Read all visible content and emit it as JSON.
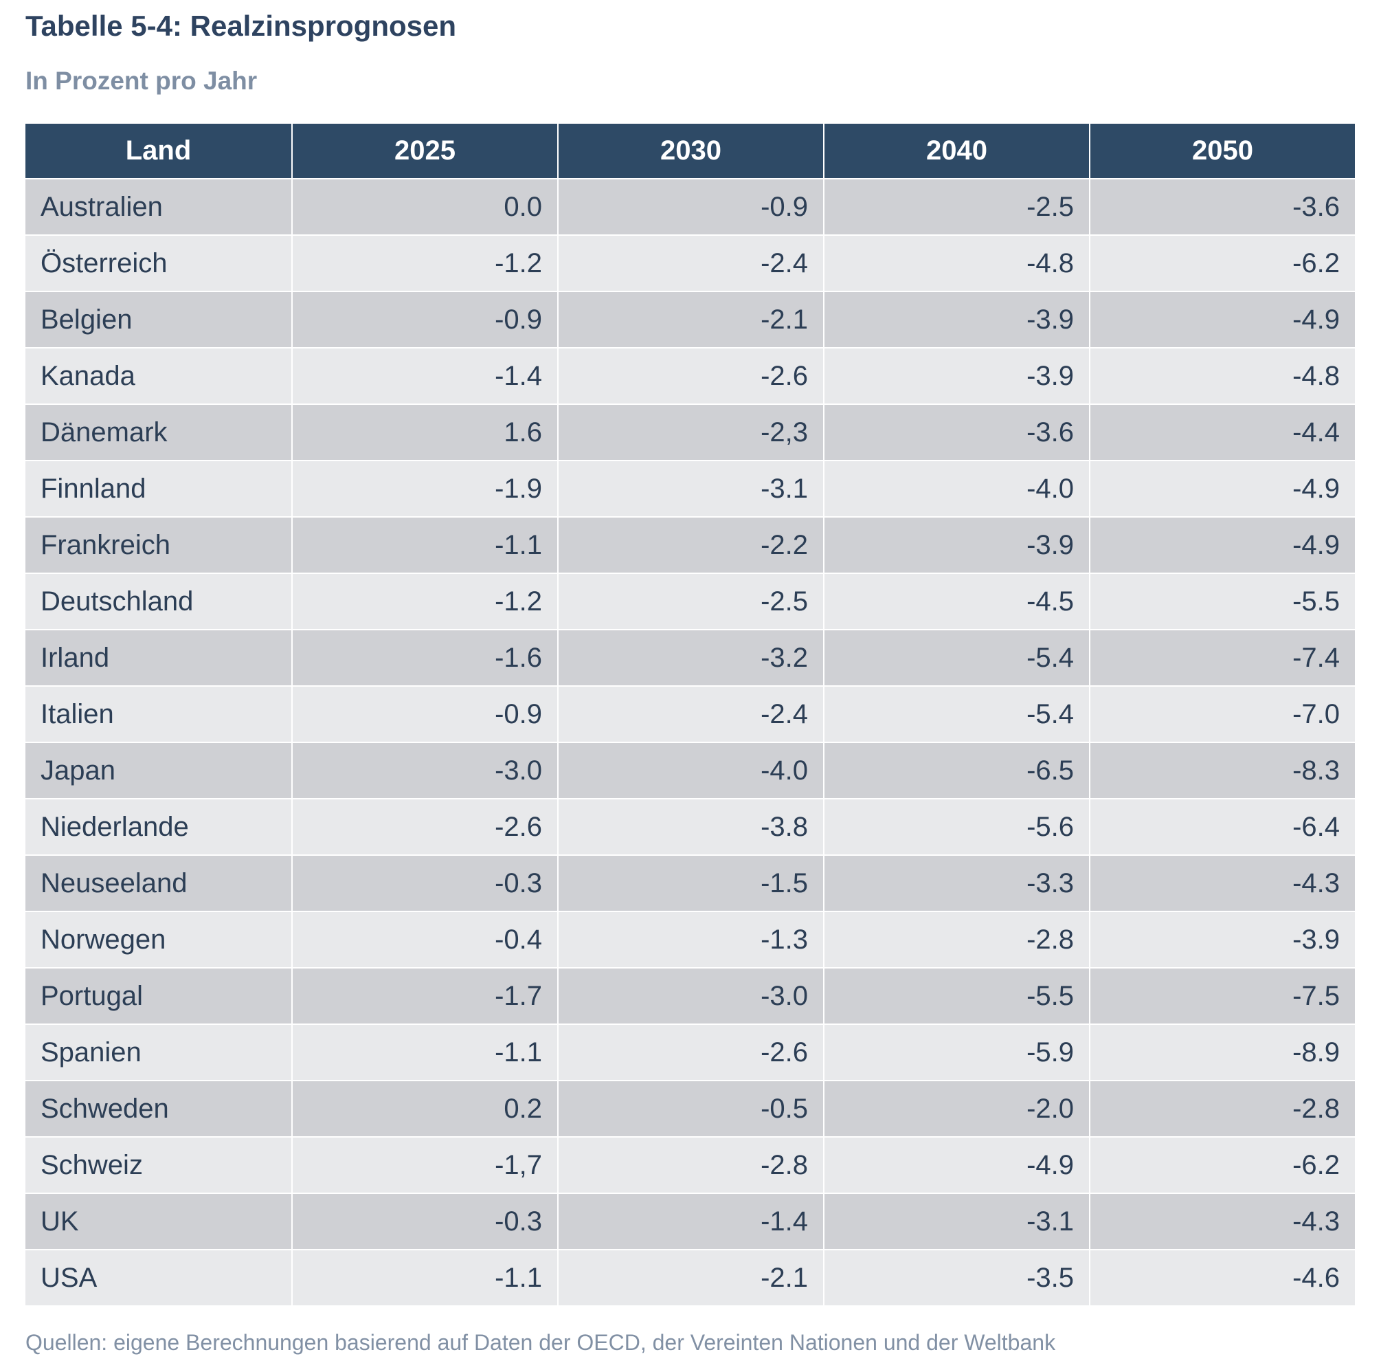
{
  "title": "Tabelle 5-4: Realzinsprognosen",
  "subtitle": "In Prozent pro Jahr",
  "table": {
    "headers": [
      "Land",
      "2025",
      "2030",
      "2040",
      "2050"
    ],
    "rows": [
      [
        "Australien",
        "0.0",
        "-0.9",
        "-2.5",
        "-3.6"
      ],
      [
        "Österreich",
        "-1.2",
        "-2.4",
        "-4.8",
        "-6.2"
      ],
      [
        "Belgien",
        "-0.9",
        "-2.1",
        "-3.9",
        "-4.9"
      ],
      [
        "Kanada",
        "-1.4",
        "-2.6",
        "-3.9",
        "-4.8"
      ],
      [
        "Dänemark",
        "1.6",
        "-2,3",
        "-3.6",
        "-4.4"
      ],
      [
        "Finnland",
        "-1.9",
        "-3.1",
        "-4.0",
        "-4.9"
      ],
      [
        "Frankreich",
        "-1.1",
        "-2.2",
        "-3.9",
        "-4.9"
      ],
      [
        "Deutschland",
        "-1.2",
        "-2.5",
        "-4.5",
        "-5.5"
      ],
      [
        "Irland",
        "-1.6",
        "-3.2",
        "-5.4",
        "-7.4"
      ],
      [
        "Italien",
        "-0.9",
        "-2.4",
        "-5.4",
        "-7.0"
      ],
      [
        "Japan",
        "-3.0",
        "-4.0",
        "-6.5",
        "-8.3"
      ],
      [
        "Niederlande",
        "-2.6",
        "-3.8",
        "-5.6",
        "-6.4"
      ],
      [
        "Neuseeland",
        "-0.3",
        "-1.5",
        "-3.3",
        "-4.3"
      ],
      [
        "Norwegen",
        "-0.4",
        "-1.3",
        "-2.8",
        "-3.9"
      ],
      [
        "Portugal",
        "-1.7",
        "-3.0",
        "-5.5",
        "-7.5"
      ],
      [
        "Spanien",
        "-1.1",
        "-2.6",
        "-5.9",
        "-8.9"
      ],
      [
        "Schweden",
        "0.2",
        "-0.5",
        "-2.0",
        "-2.8"
      ],
      [
        "Schweiz",
        "-1,7",
        "-2.8",
        "-4.9",
        "-6.2"
      ],
      [
        "UK",
        "-0.3",
        "-1.4",
        "-3.1",
        "-4.3"
      ],
      [
        "USA",
        "-1.1",
        "-2.1",
        "-3.5",
        "-4.6"
      ]
    ]
  },
  "footer": "Quellen: eigene Berechnungen basierend auf Daten der OECD, der Vereinten Nationen und der Weltbank",
  "colors": {
    "header_bg": "#2e4a66",
    "row_dark": "#cfd0d4",
    "row_light": "#e8e9eb",
    "title": "#2e4360",
    "subtitle": "#7e8ea3"
  }
}
